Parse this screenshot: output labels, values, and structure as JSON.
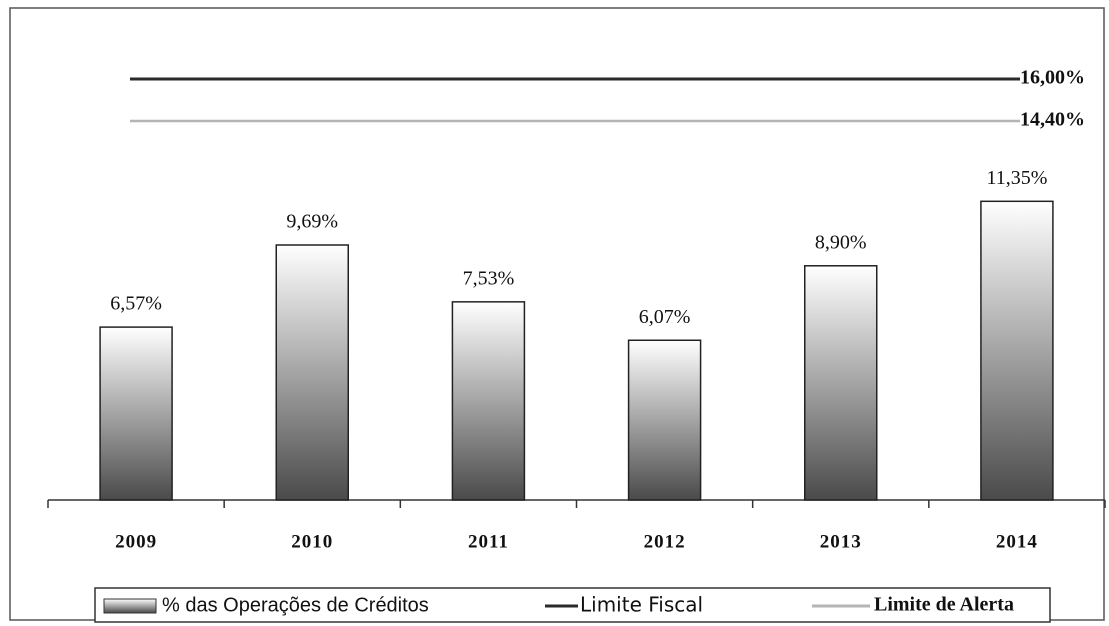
{
  "chart_data": {
    "type": "bar",
    "categories": [
      "2009",
      "2010",
      "2011",
      "2012",
      "2013",
      "2014"
    ],
    "series": [
      {
        "name": "% das Operações de Créditos",
        "color": "#4a4a4a",
        "values": [
          6.57,
          9.69,
          7.53,
          6.07,
          8.9,
          11.35
        ],
        "value_labels": [
          "6,57%",
          "9,69%",
          "7,53%",
          "6,07%",
          "8,90%",
          "11,35%"
        ]
      }
    ],
    "reference_lines": [
      {
        "name": "Limite Fiscal",
        "value": 16.0,
        "label": "16,00%",
        "color": "#2a2a2a"
      },
      {
        "name": "Limite de Alerta",
        "value": 14.4,
        "label": "14,40%",
        "color": "#b5b5b5"
      }
    ],
    "ylim": [
      0,
      19
    ]
  }
}
